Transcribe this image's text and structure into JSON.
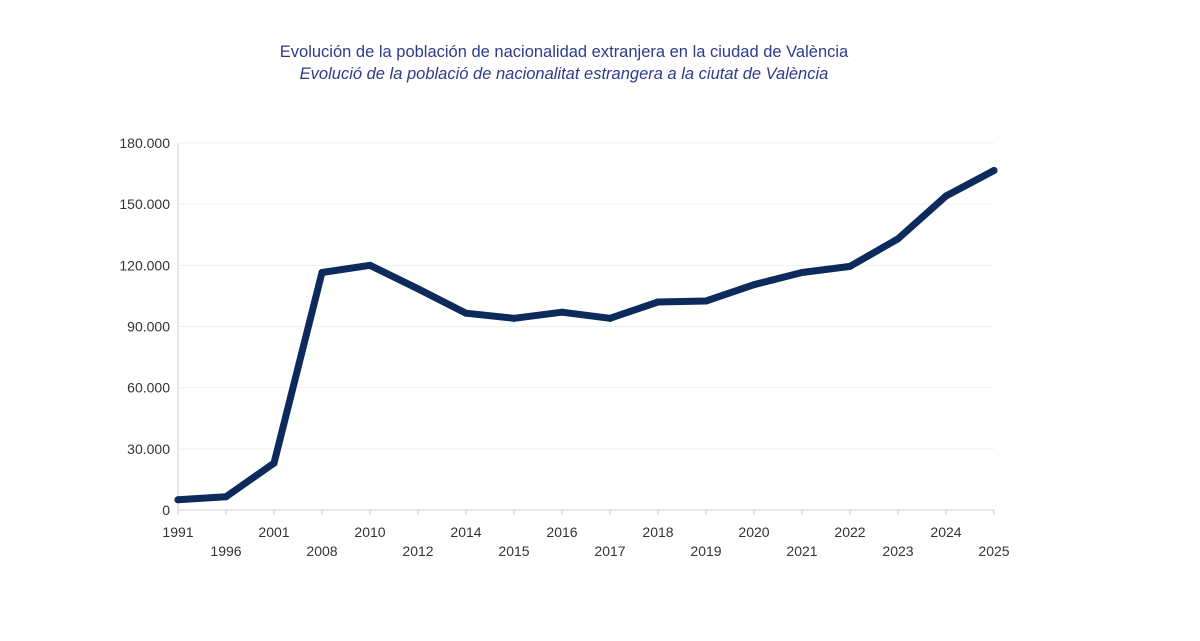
{
  "chart_data": {
    "type": "line",
    "title": "Evolución de la población de nacionalidad extranjera en la ciudad de València",
    "subtitle": "Evolució de la població de nacionalitat estrangera a la ciutat de València",
    "categories": [
      "1991",
      "1996",
      "2001",
      "2008",
      "2010",
      "2012",
      "2014",
      "2015",
      "2016",
      "2017",
      "2018",
      "2019",
      "2020",
      "2021",
      "2022",
      "2023",
      "2024",
      "2025"
    ],
    "series": [
      {
        "values": [
          5000,
          6500,
          23000,
          116500,
          120000,
          108500,
          96500,
          94000,
          97000,
          94000,
          102000,
          102500,
          110500,
          116500,
          119500,
          133000,
          154000,
          166500
        ]
      }
    ],
    "ylim": [
      0,
      180000
    ],
    "yticks": [
      0,
      30000,
      60000,
      90000,
      120000,
      150000,
      180000
    ],
    "ytick_labels": [
      "0",
      "30.000",
      "60.000",
      "90.000",
      "120.000",
      "150.000",
      "180.000"
    ],
    "xlabel": "",
    "ylabel": "",
    "grid": true,
    "line_color": "#0c2a5b"
  }
}
